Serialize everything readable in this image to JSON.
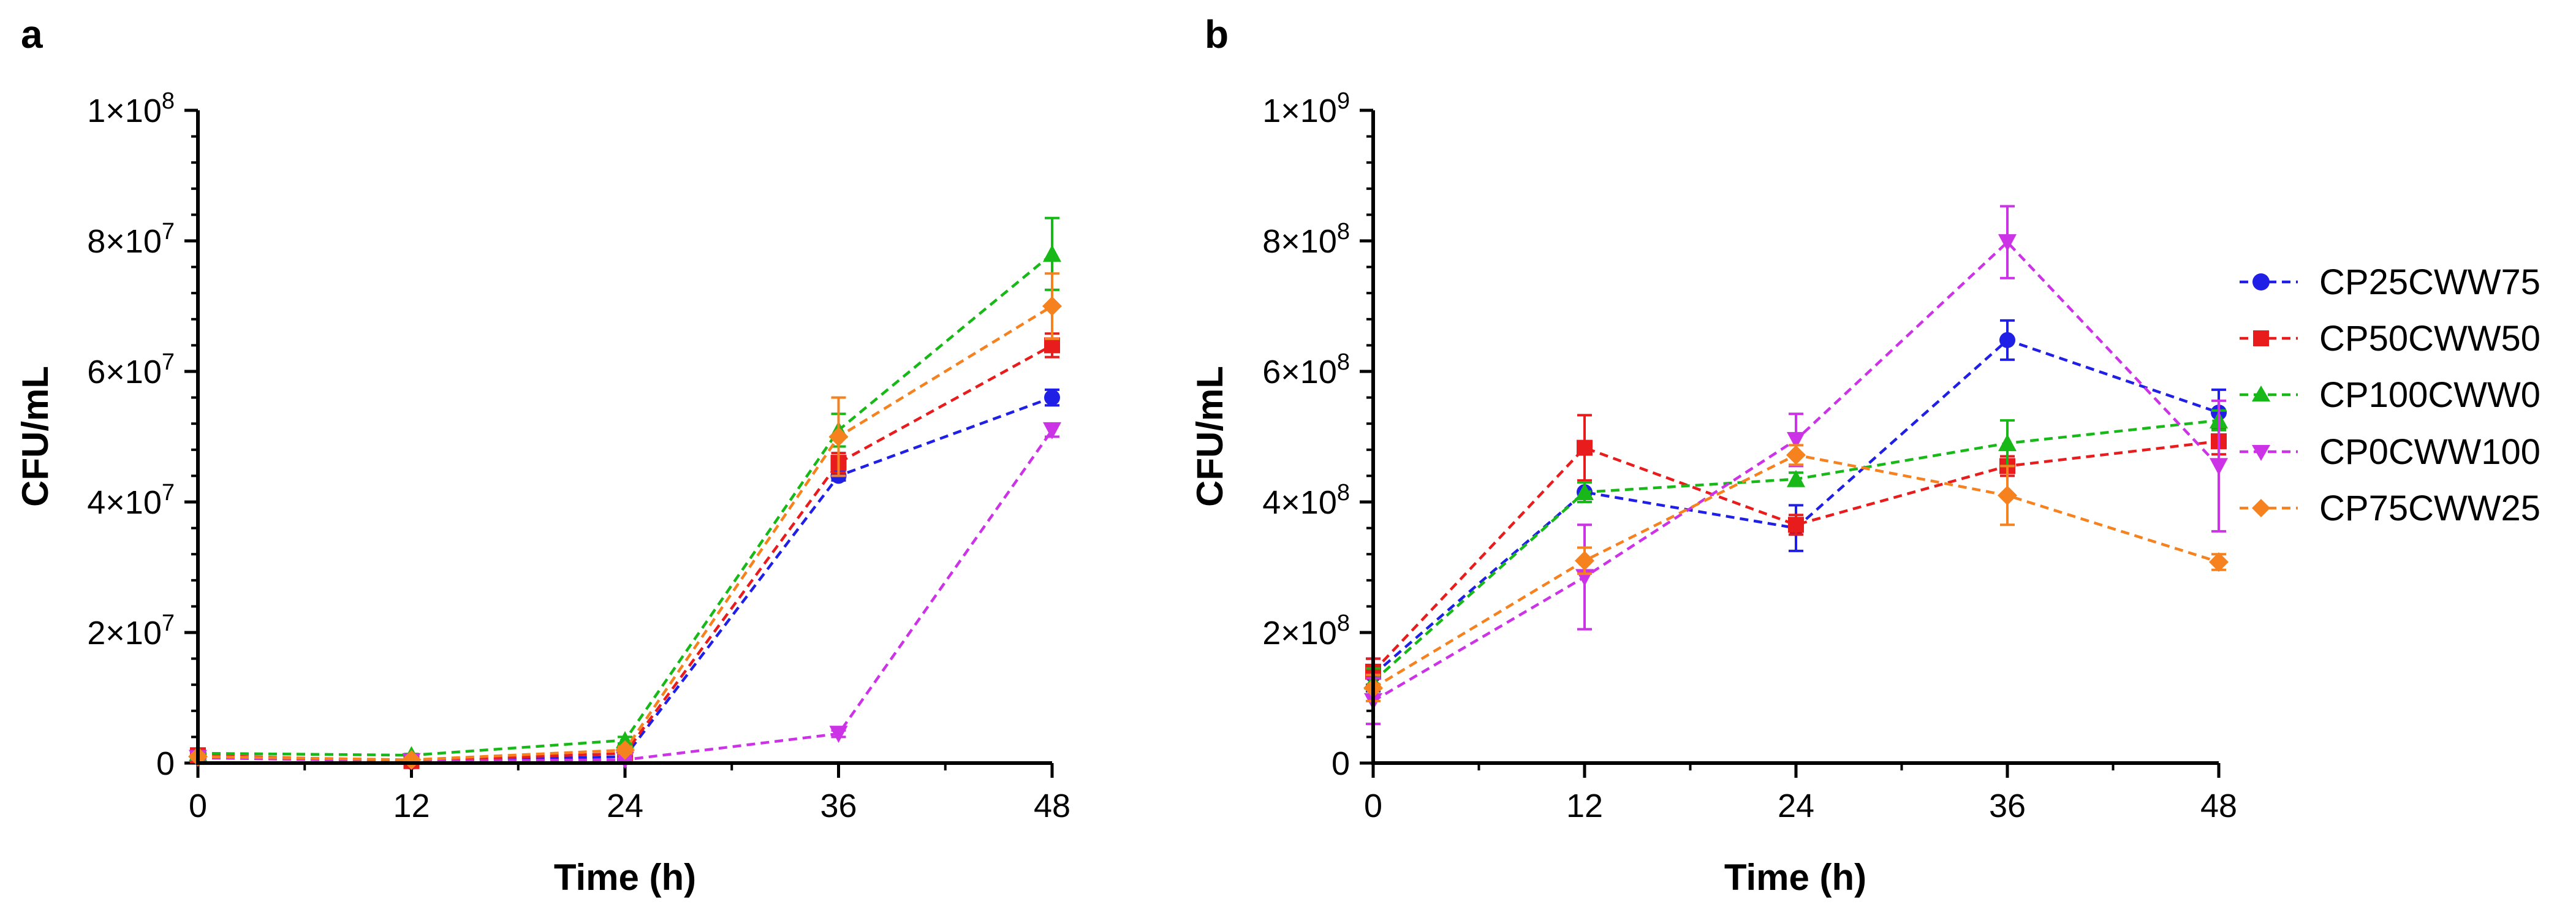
{
  "chart_data": [
    {
      "type": "line",
      "panel": "a",
      "xlabel": "Time (h)",
      "ylabel": "CFU/mL",
      "x": [
        0,
        12,
        24,
        36,
        48
      ],
      "xticks": [
        0,
        12,
        24,
        36,
        48
      ],
      "xtick_labels": [
        "0",
        "12",
        "24",
        "36",
        "48"
      ],
      "xlim": [
        0,
        48
      ],
      "ylim": [
        0,
        100000000
      ],
      "yticks": [
        0,
        20000000,
        40000000,
        60000000,
        80000000,
        100000000
      ],
      "ytick_labels": [
        {
          "base": "0",
          "exp": ""
        },
        {
          "base": "2×10",
          "exp": "7"
        },
        {
          "base": "4×10",
          "exp": "7"
        },
        {
          "base": "6×10",
          "exp": "7"
        },
        {
          "base": "8×10",
          "exp": "7"
        },
        {
          "base": "1×10",
          "exp": "8"
        }
      ],
      "series": [
        {
          "name": "CP25CWW75",
          "color": "#1f1fe6",
          "marker": "circle",
          "values": [
            1000000,
            200000,
            1000000,
            44000000,
            56000000
          ],
          "errors": [
            300000,
            100000,
            500000,
            700000,
            1200000
          ]
        },
        {
          "name": "CP50CWW50",
          "color": "#e81c1c",
          "marker": "square",
          "values": [
            1200000,
            300000,
            1500000,
            46000000,
            64000000
          ],
          "errors": [
            300000,
            100000,
            500000,
            1500000,
            1800000
          ]
        },
        {
          "name": "CP100CWW0",
          "color": "#17b817",
          "marker": "triangle-up",
          "values": [
            1500000,
            1200000,
            3500000,
            51000000,
            78000000
          ],
          "errors": [
            300000,
            200000,
            500000,
            2500000,
            5500000
          ]
        },
        {
          "name": "CP0CWW100",
          "color": "#cc33e6",
          "marker": "triangle-down",
          "values": [
            800000,
            300000,
            500000,
            4500000,
            51000000
          ],
          "errors": [
            200000,
            100000,
            200000,
            500000,
            1000000
          ]
        },
        {
          "name": "CP75CWW25",
          "color": "#f5821f",
          "marker": "diamond",
          "values": [
            1000000,
            500000,
            2000000,
            50000000,
            70000000
          ],
          "errors": [
            300000,
            100000,
            500000,
            6000000,
            5000000
          ]
        }
      ]
    },
    {
      "type": "line",
      "panel": "b",
      "xlabel": "Time (h)",
      "ylabel": "CFU/mL",
      "x": [
        0,
        12,
        24,
        36,
        48
      ],
      "xticks": [
        0,
        12,
        24,
        36,
        48
      ],
      "xtick_labels": [
        "0",
        "12",
        "24",
        "36",
        "48"
      ],
      "xlim": [
        0,
        48
      ],
      "ylim": [
        0,
        1000000000
      ],
      "yticks": [
        0,
        200000000,
        400000000,
        600000000,
        800000000,
        1000000000
      ],
      "ytick_labels": [
        {
          "base": "0",
          "exp": ""
        },
        {
          "base": "2×10",
          "exp": "8"
        },
        {
          "base": "4×10",
          "exp": "8"
        },
        {
          "base": "6×10",
          "exp": "8"
        },
        {
          "base": "8×10",
          "exp": "8"
        },
        {
          "base": "1×10",
          "exp": "9"
        }
      ],
      "series": [
        {
          "name": "CP25CWW75",
          "color": "#1f1fe6",
          "marker": "circle",
          "values": [
            135000000,
            415000000,
            360000000,
            648000000,
            537000000
          ],
          "errors": [
            25000000,
            15000000,
            35000000,
            30000000,
            35000000
          ]
        },
        {
          "name": "CP50CWW50",
          "color": "#e81c1c",
          "marker": "square",
          "values": [
            140000000,
            483000000,
            365000000,
            455000000,
            493000000
          ],
          "errors": [
            20000000,
            50000000,
            15000000,
            15000000,
            20000000
          ]
        },
        {
          "name": "CP100CWW0",
          "color": "#17b817",
          "marker": "triangle-up",
          "values": [
            125000000,
            415000000,
            435000000,
            490000000,
            525000000
          ],
          "errors": [
            20000000,
            15000000,
            10000000,
            35000000,
            15000000
          ]
        },
        {
          "name": "CP0CWW100",
          "color": "#cc33e6",
          "marker": "triangle-down",
          "values": [
            95000000,
            285000000,
            495000000,
            798000000,
            455000000
          ],
          "errors": [
            35000000,
            80000000,
            40000000,
            55000000,
            100000000
          ]
        },
        {
          "name": "CP75CWW25",
          "color": "#f5821f",
          "marker": "diamond",
          "values": [
            115000000,
            310000000,
            472000000,
            410000000,
            308000000
          ],
          "errors": [
            20000000,
            20000000,
            15000000,
            45000000,
            12000000
          ]
        }
      ]
    }
  ],
  "legend": {
    "entries": [
      {
        "label": "CP25CWW75",
        "color": "#1f1fe6",
        "marker": "circle"
      },
      {
        "label": "CP50CWW50",
        "color": "#e81c1c",
        "marker": "square"
      },
      {
        "label": "CP100CWW0",
        "color": "#17b817",
        "marker": "triangle-up"
      },
      {
        "label": "CP0CWW100",
        "color": "#cc33e6",
        "marker": "triangle-down"
      },
      {
        "label": "CP75CWW25",
        "color": "#f5821f",
        "marker": "diamond"
      }
    ]
  }
}
